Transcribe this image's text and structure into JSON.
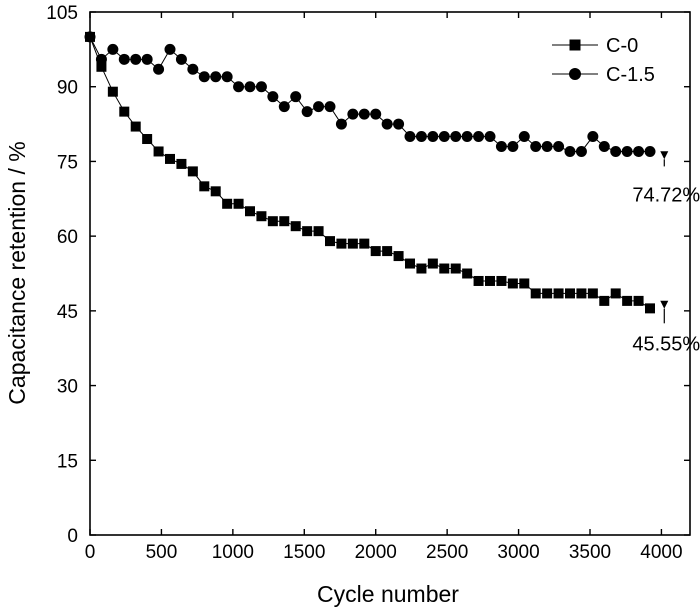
{
  "chart_data": {
    "type": "scatter",
    "xlabel": "Cycle number",
    "ylabel": "Capacitance retention / %",
    "xlim": [
      0,
      4200
    ],
    "ylim": [
      0,
      105
    ],
    "xticks": [
      0,
      500,
      1000,
      1500,
      2000,
      2500,
      3000,
      3500,
      4000
    ],
    "yticks": [
      0,
      15,
      30,
      45,
      60,
      75,
      90,
      105
    ],
    "grid": false,
    "legend_position": "top-right",
    "series": [
      {
        "name": "C-0",
        "marker": "square",
        "x": [
          0,
          80,
          160,
          240,
          320,
          400,
          480,
          560,
          640,
          720,
          800,
          880,
          960,
          1040,
          1120,
          1200,
          1280,
          1360,
          1440,
          1520,
          1600,
          1680,
          1760,
          1840,
          1920,
          2000,
          2080,
          2160,
          2240,
          2320,
          2400,
          2480,
          2560,
          2640,
          2720,
          2800,
          2880,
          2960,
          3040,
          3120,
          3200,
          3280,
          3360,
          3440,
          3520,
          3600,
          3680,
          3760,
          3840,
          3920
        ],
        "y": [
          100,
          94,
          89,
          85,
          82,
          79.5,
          77,
          75.5,
          74.5,
          73,
          70,
          69,
          66.5,
          66.5,
          65,
          64,
          63,
          63,
          62,
          61,
          61,
          59,
          58.5,
          58.5,
          58.5,
          57,
          57,
          56,
          54.5,
          53.5,
          54.5,
          53.5,
          53.5,
          52.5,
          51,
          51,
          51,
          50.5,
          50.5,
          48.5,
          48.5,
          48.5,
          48.5,
          48.5,
          48.5,
          47,
          48.5,
          47,
          47,
          45.5
        ]
      },
      {
        "name": "C-1.5",
        "marker": "circle",
        "x": [
          0,
          80,
          160,
          240,
          320,
          400,
          480,
          560,
          640,
          720,
          800,
          880,
          960,
          1040,
          1120,
          1200,
          1280,
          1360,
          1440,
          1520,
          1600,
          1680,
          1760,
          1840,
          1920,
          2000,
          2080,
          2160,
          2240,
          2320,
          2400,
          2480,
          2560,
          2640,
          2720,
          2800,
          2880,
          2960,
          3040,
          3120,
          3200,
          3280,
          3360,
          3440,
          3520,
          3600,
          3680,
          3760,
          3840,
          3920
        ],
        "y": [
          100,
          95.5,
          97.5,
          95.5,
          95.5,
          95.5,
          93.5,
          97.5,
          95.5,
          93.5,
          92,
          92,
          92,
          90,
          90,
          90,
          88,
          86,
          88,
          85,
          86,
          86,
          82.5,
          84.5,
          84.5,
          84.5,
          82.5,
          82.5,
          80,
          80,
          80,
          80,
          80,
          80,
          80,
          80,
          78,
          78,
          80,
          78,
          78,
          78,
          77,
          77,
          80,
          78,
          77,
          77,
          77,
          77
        ]
      }
    ],
    "annotations": [
      {
        "text": "74.72%",
        "x": 4020,
        "y": 67
      },
      {
        "text": "45.55%",
        "x": 4020,
        "y": 37
      }
    ]
  }
}
